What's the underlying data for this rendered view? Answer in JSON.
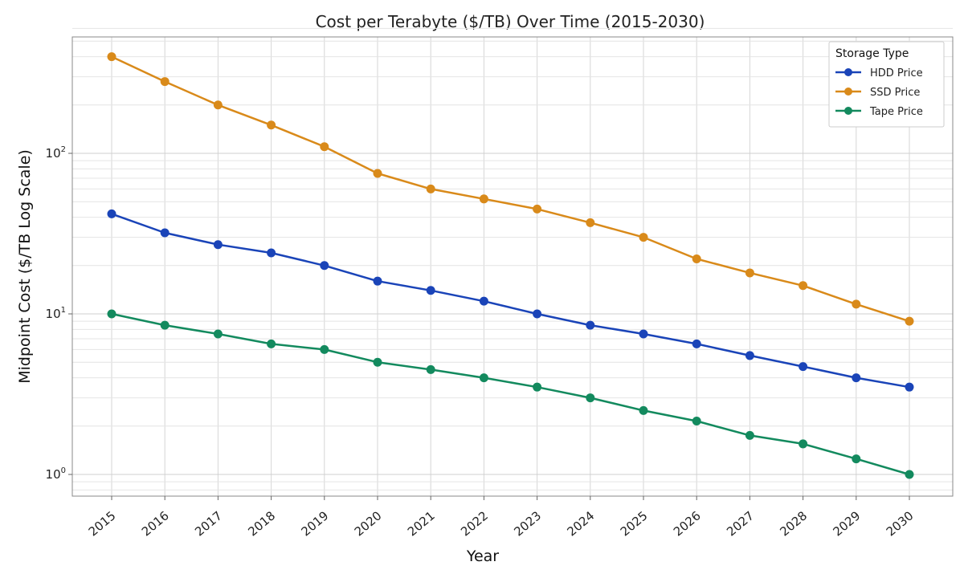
{
  "chart_data": {
    "type": "line",
    "title": "Cost per Terabyte ($/TB) Over Time (2015-2030)",
    "xlabel": "Year",
    "ylabel": "Midpoint Cost ($/TB Log Scale)",
    "yscale": "log",
    "ylim": [
      0.8,
      600
    ],
    "grid": true,
    "categories": [
      "2015",
      "2016",
      "2017",
      "2018",
      "2019",
      "2020",
      "2021",
      "2022",
      "2023",
      "2024",
      "2025",
      "2026",
      "2027",
      "2028",
      "2029",
      "2030"
    ],
    "y_ticks": [
      {
        "value": 1,
        "base": "10",
        "exp": "0"
      },
      {
        "value": 10,
        "base": "10",
        "exp": "1"
      },
      {
        "value": 100,
        "base": "10",
        "exp": "2"
      }
    ],
    "legend": {
      "title": "Storage Type",
      "position": "top-right"
    },
    "series": [
      {
        "name": "HDD Price",
        "color": "#1a44b8",
        "values": [
          42,
          32,
          27,
          24,
          20,
          16,
          14,
          12,
          10,
          8.5,
          7.5,
          6.5,
          5.5,
          4.7,
          4.0,
          3.5
        ]
      },
      {
        "name": "SSD Price",
        "color": "#d98a1a",
        "values": [
          400,
          280,
          200,
          150,
          110,
          75,
          60,
          52,
          45,
          37,
          30,
          22,
          18,
          15,
          11.5,
          9
        ]
      },
      {
        "name": "Tape Price",
        "color": "#138a5e",
        "values": [
          10,
          8.5,
          7.5,
          6.5,
          6.0,
          5.0,
          4.5,
          4.0,
          3.5,
          3.0,
          2.5,
          2.15,
          1.75,
          1.55,
          1.25,
          1.0
        ]
      }
    ]
  }
}
